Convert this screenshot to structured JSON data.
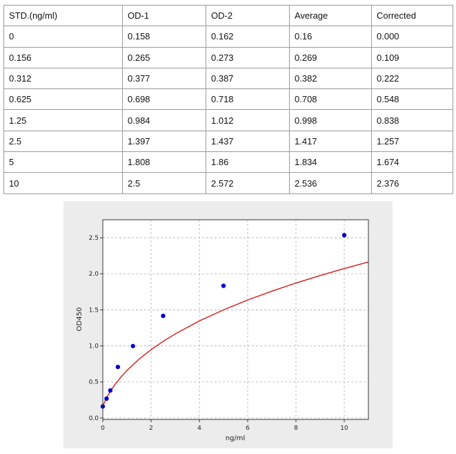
{
  "table": {
    "headers": [
      "STD.(ng/ml)",
      "OD-1",
      "OD-2",
      "Average",
      "Corrected"
    ],
    "rows": [
      [
        "0",
        "0.158",
        "0.162",
        "0.16",
        "0.000"
      ],
      [
        "0.156",
        "0.265",
        "0.273",
        "0.269",
        "0.109"
      ],
      [
        "0.312",
        "0.377",
        "0.387",
        "0.382",
        "0.222"
      ],
      [
        "0.625",
        "0.698",
        "0.718",
        "0.708",
        "0.548"
      ],
      [
        "1.25",
        "0.984",
        "1.012",
        "0.998",
        "0.838"
      ],
      [
        "2.5",
        "1.397",
        "1.437",
        "1.417",
        "1.257"
      ],
      [
        "5",
        "1.808",
        "1.86",
        "1.834",
        "1.674"
      ],
      [
        "10",
        "2.5",
        "2.572",
        "2.536",
        "2.376"
      ]
    ]
  },
  "chart_data": {
    "type": "scatter",
    "title": "",
    "xlabel": "ng/ml",
    "ylabel": "OD450",
    "xlim": [
      0,
      11
    ],
    "ylim": [
      -0.02,
      2.75
    ],
    "xticks": [
      0,
      2,
      4,
      6,
      8,
      10
    ],
    "xtick_labels": [
      "0",
      "2",
      "4",
      "6",
      "8",
      "10"
    ],
    "yticks": [
      0.0,
      0.5,
      1.0,
      1.5,
      2.0,
      2.5
    ],
    "ytick_labels": [
      "0.0",
      "0.5",
      "1.0",
      "1.5",
      "2.0",
      "2.5"
    ],
    "grid": true,
    "points": {
      "x": [
        0,
        0.156,
        0.312,
        0.625,
        1.25,
        2.5,
        5,
        10
      ],
      "y": [
        0.16,
        0.269,
        0.382,
        0.708,
        0.998,
        1.417,
        1.834,
        2.536
      ],
      "color": "#0000cc"
    },
    "fit_curve": {
      "color": "#d62728",
      "x": [
        0,
        0.05,
        0.1,
        0.2,
        0.3,
        0.5,
        0.75,
        1,
        1.5,
        2,
        2.5,
        3,
        4,
        5,
        6,
        7,
        8,
        9,
        10,
        11
      ],
      "y": [
        0.16,
        0.203,
        0.241,
        0.307,
        0.364,
        0.462,
        0.567,
        0.659,
        0.816,
        0.948,
        1.063,
        1.166,
        1.346,
        1.5,
        1.636,
        1.759,
        1.872,
        1.976,
        2.073,
        2.164
      ]
    }
  }
}
